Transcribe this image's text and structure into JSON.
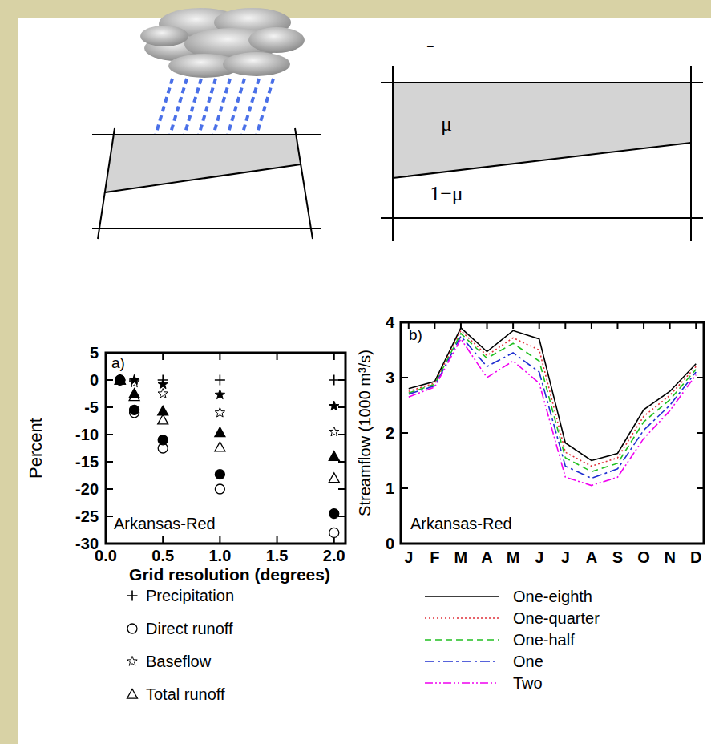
{
  "diagram": {
    "top_mark": "–",
    "region_labels": [
      "μ",
      "1−μ"
    ]
  },
  "chart_data": [
    {
      "type": "scatter",
      "annotations": [
        "a)",
        "Arkansas-Red"
      ],
      "x_label": "Grid resolution (degrees)",
      "y_label": "Percent",
      "xlim": [
        0,
        2.1
      ],
      "xticks": [
        {
          "value": 0,
          "label": "0.0"
        },
        0.5,
        {
          "value": 1,
          "label": "1.0"
        },
        1.5,
        {
          "value": 2,
          "label": "2.0"
        }
      ],
      "ylim": [
        -30,
        5
      ],
      "yticks": [
        -30,
        -25,
        -20,
        -15,
        -10,
        -5,
        0,
        5
      ],
      "legend": "bottom",
      "series": [
        {
          "name": "Precipitation",
          "marker": "plus",
          "color": "#000000",
          "x": [
            0.125,
            0.25,
            0.5,
            1,
            2
          ],
          "values": [
            0,
            0,
            0,
            0,
            0
          ]
        },
        {
          "name": "Direct runoff",
          "marker": "circle-open",
          "color": "#000000",
          "x": [
            0.125,
            0.25,
            0.5,
            1,
            2
          ],
          "values": [
            0,
            -6,
            -12.5,
            -20,
            -28
          ]
        },
        {
          "name": "Baseflow",
          "marker": "star-open",
          "color": "#000000",
          "x": [
            0.125,
            0.25,
            0.5,
            1,
            2
          ],
          "values": [
            0,
            -0.5,
            -2.5,
            -6,
            -9.5
          ]
        },
        {
          "name": "Total runoff",
          "marker": "triangle-open",
          "color": "#000000",
          "x": [
            0.125,
            0.25,
            0.5,
            1,
            2
          ],
          "values": [
            0,
            -3,
            -7.3,
            -12.3,
            -18
          ]
        },
        {
          "marker": "circle",
          "color": "#000000",
          "x": [
            0.125,
            0.25,
            0.5,
            1,
            2
          ],
          "values": [
            0,
            -5.5,
            -11,
            -17.3,
            -24.5
          ]
        },
        {
          "marker": "star",
          "color": "#000000",
          "x": [
            0.125,
            0.25,
            0.5,
            1,
            2
          ],
          "values": [
            0,
            0,
            -0.8,
            -2.7,
            -4.8
          ]
        },
        {
          "marker": "triangle",
          "color": "#000000",
          "x": [
            0.125,
            0.25,
            0.5,
            1,
            2
          ],
          "values": [
            0,
            -2.5,
            -5.7,
            -9.6,
            -14
          ]
        }
      ]
    },
    {
      "type": "line",
      "annotations": [
        "b)",
        "Arkansas-Red"
      ],
      "y_label": "Streamflow (1000 m³/s)",
      "categories": [
        "J",
        "F",
        "M",
        "A",
        "M",
        "J",
        "J",
        "A",
        "S",
        "O",
        "N",
        "D"
      ],
      "ylim": [
        0,
        4
      ],
      "yticks": [
        0,
        1,
        2,
        3,
        4
      ],
      "legend": "bottom",
      "series": [
        {
          "name": "One-eighth",
          "color": "#000000",
          "line_style": "solid",
          "values": [
            2.8,
            2.93,
            3.9,
            3.47,
            3.85,
            3.7,
            1.82,
            1.5,
            1.63,
            2.42,
            2.75,
            3.25
          ]
        },
        {
          "name": "One-quarter",
          "color": "#e0303a",
          "line_style": "dotted",
          "values": [
            2.75,
            2.9,
            3.85,
            3.4,
            3.72,
            3.5,
            1.65,
            1.4,
            1.55,
            2.3,
            2.68,
            3.2
          ]
        },
        {
          "name": "One-half",
          "color": "#20c020",
          "line_style": "dashed",
          "values": [
            2.72,
            2.88,
            3.8,
            3.35,
            3.62,
            3.3,
            1.55,
            1.3,
            1.45,
            2.2,
            2.6,
            3.15
          ]
        },
        {
          "name": "One",
          "color": "#2030d0",
          "line_style": "dashdot",
          "values": [
            2.7,
            2.85,
            3.75,
            3.2,
            3.45,
            3.1,
            1.4,
            1.18,
            1.35,
            2.05,
            2.5,
            3.1
          ]
        },
        {
          "name": "Two",
          "color": "#f000f0",
          "line_style": "dashdotdot",
          "values": [
            2.65,
            2.83,
            3.7,
            3.0,
            3.3,
            2.9,
            1.2,
            1.05,
            1.2,
            1.9,
            2.4,
            3.05
          ]
        }
      ]
    }
  ]
}
